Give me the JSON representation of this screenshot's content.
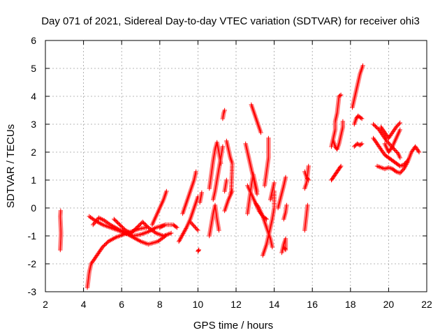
{
  "chart_data": {
    "type": "scatter",
    "title": "Day 071 of 2021, Sidereal Day-to-day VTEC variation (SDTVAR) for receiver ohi3",
    "xlabel": "GPS time / hours",
    "ylabel": "SDTVAR / TECUs",
    "xlim": [
      2,
      22
    ],
    "ylim": [
      -3,
      6
    ],
    "xticks": [
      2,
      4,
      6,
      8,
      10,
      12,
      14,
      16,
      18,
      20,
      22
    ],
    "yticks": [
      -3,
      -2,
      -1,
      0,
      1,
      2,
      3,
      4,
      5,
      6
    ],
    "grid": true,
    "marker": "+",
    "color": "#ff0000",
    "series": [
      {
        "segments": [
          [
            [
              2.78,
              -1.5
            ],
            [
              2.8,
              -1.2
            ],
            [
              2.82,
              -0.9
            ],
            [
              2.8,
              -0.6
            ],
            [
              2.78,
              -0.3
            ],
            [
              2.8,
              -0.1
            ]
          ],
          [
            [
              4.2,
              -2.85
            ],
            [
              4.3,
              -2.3
            ],
            [
              4.4,
              -2.0
            ],
            [
              4.6,
              -1.8
            ],
            [
              4.8,
              -1.6
            ],
            [
              5.0,
              -1.4
            ],
            [
              5.3,
              -1.2
            ],
            [
              5.7,
              -1.05
            ],
            [
              6.1,
              -0.95
            ],
            [
              6.5,
              -0.85
            ],
            [
              6.9,
              -0.75
            ],
            [
              7.3,
              -0.7
            ]
          ],
          [
            [
              4.3,
              -0.3
            ],
            [
              4.6,
              -0.45
            ],
            [
              5.0,
              -0.6
            ],
            [
              5.4,
              -0.7
            ],
            [
              5.8,
              -0.8
            ],
            [
              6.2,
              -0.9
            ],
            [
              6.6,
              -1.05
            ],
            [
              7.0,
              -1.2
            ],
            [
              7.4,
              -1.3
            ],
            [
              7.9,
              -1.2
            ],
            [
              8.3,
              -1.0
            ]
          ],
          [
            [
              4.5,
              -0.6
            ],
            [
              4.8,
              -0.35
            ],
            [
              5.1,
              -0.45
            ],
            [
              5.4,
              -0.6
            ],
            [
              5.8,
              -0.75
            ],
            [
              6.2,
              -0.9
            ],
            [
              6.6,
              -1.0
            ],
            [
              7.0,
              -0.95
            ],
            [
              7.4,
              -0.85
            ],
            [
              7.8,
              -0.7
            ],
            [
              8.3,
              -0.6
            ]
          ],
          [
            [
              5.6,
              -0.4
            ],
            [
              5.9,
              -0.6
            ],
            [
              6.2,
              -0.8
            ],
            [
              6.5,
              -0.9
            ],
            [
              6.8,
              -0.7
            ],
            [
              7.1,
              -0.5
            ],
            [
              7.4,
              -0.7
            ],
            [
              7.8,
              -0.9
            ],
            [
              8.2,
              -1.0
            ],
            [
              8.6,
              -0.9
            ]
          ],
          [
            [
              7.6,
              -0.6
            ],
            [
              7.8,
              -0.3
            ],
            [
              8.0,
              0.0
            ],
            [
              8.2,
              0.3
            ],
            [
              8.35,
              0.6
            ]
          ],
          [
            [
              8.0,
              -0.7
            ],
            [
              8.3,
              -0.6
            ],
            [
              8.7,
              -0.6
            ],
            [
              8.9,
              -0.7
            ]
          ],
          [
            [
              9.0,
              -1.2
            ],
            [
              9.2,
              -0.95
            ],
            [
              9.4,
              -0.7
            ],
            [
              9.6,
              -0.4
            ],
            [
              9.8,
              0.0
            ],
            [
              10.0,
              0.4
            ]
          ],
          [
            [
              9.2,
              -0.2
            ],
            [
              9.4,
              0.2
            ],
            [
              9.6,
              0.6
            ],
            [
              9.8,
              1.0
            ],
            [
              9.9,
              1.3
            ]
          ],
          [
            [
              9.6,
              -0.5
            ],
            [
              9.8,
              -0.65
            ],
            [
              10.0,
              -0.8
            ]
          ],
          [
            [
              10.0,
              -1.55
            ],
            [
              10.05,
              -1.5
            ]
          ],
          [
            [
              10.1,
              0.2
            ],
            [
              10.2,
              0.55
            ]
          ],
          [
            [
              10.6,
              -1.0
            ],
            [
              10.7,
              -0.6
            ],
            [
              10.8,
              -0.2
            ],
            [
              10.9,
              0.1
            ],
            [
              11.0,
              -0.4
            ],
            [
              11.1,
              -0.8
            ]
          ],
          [
            [
              10.6,
              0.7
            ],
            [
              10.7,
              1.2
            ],
            [
              10.8,
              1.7
            ],
            [
              10.9,
              2.1
            ],
            [
              11.0,
              2.35
            ],
            [
              11.1,
              2.0
            ],
            [
              11.2,
              1.6
            ]
          ],
          [
            [
              10.8,
              0.3
            ],
            [
              10.9,
              0.6
            ],
            [
              11.0,
              1.0
            ],
            [
              11.1,
              1.4
            ],
            [
              11.2,
              1.8
            ],
            [
              11.3,
              2.2
            ]
          ],
          [
            [
              11.3,
              3.2
            ],
            [
              11.35,
              3.4
            ],
            [
              11.4,
              3.5
            ]
          ],
          [
            [
              11.4,
              0.6
            ],
            [
              11.5,
              1.0
            ]
          ],
          [
            [
              11.5,
              2.4
            ],
            [
              11.6,
              2.1
            ],
            [
              11.7,
              1.8
            ],
            [
              11.8,
              1.6
            ],
            [
              11.75,
              0.6
            ],
            [
              11.7,
              0.5
            ]
          ],
          [
            [
              11.4,
              -0.1
            ],
            [
              11.6,
              0.3
            ],
            [
              11.8,
              0.6
            ]
          ],
          [
            [
              12.5,
              2.3
            ],
            [
              12.6,
              2.0
            ],
            [
              12.7,
              1.7
            ],
            [
              12.8,
              1.4
            ],
            [
              12.9,
              1.1
            ],
            [
              13.0,
              0.8
            ],
            [
              13.1,
              0.5
            ]
          ],
          [
            [
              12.6,
              0.8
            ],
            [
              12.8,
              0.5
            ],
            [
              13.0,
              0.2
            ],
            [
              13.2,
              -0.1
            ],
            [
              13.4,
              -0.3
            ],
            [
              13.6,
              -0.4
            ]
          ],
          [
            [
              12.6,
              -0.2
            ],
            [
              12.7,
              0.3
            ],
            [
              12.8,
              0.8
            ],
            [
              12.9,
              1.2
            ],
            [
              13.0,
              0.9
            ],
            [
              13.1,
              0.6
            ]
          ],
          [
            [
              12.8,
              3.7
            ],
            [
              12.9,
              3.5
            ],
            [
              13.0,
              3.3
            ],
            [
              13.1,
              3.1
            ],
            [
              13.2,
              2.9
            ],
            [
              13.3,
              2.7
            ]
          ],
          [
            [
              13.0,
              0.2
            ],
            [
              13.2,
              0.0
            ],
            [
              13.4,
              -0.3
            ],
            [
              13.6,
              -0.7
            ],
            [
              13.8,
              -1.1
            ],
            [
              13.9,
              -1.4
            ]
          ],
          [
            [
              13.4,
              -1.7
            ],
            [
              13.5,
              -1.5
            ],
            [
              13.6,
              -1.3
            ],
            [
              13.7,
              -1.0
            ],
            [
              13.8,
              -0.7
            ],
            [
              13.9,
              -0.4
            ],
            [
              14.0,
              0.0
            ],
            [
              14.0,
              0.6
            ]
          ],
          [
            [
              13.5,
              0.8
            ],
            [
              13.6,
              1.3
            ],
            [
              13.7,
              1.8
            ],
            [
              13.7,
              2.2
            ],
            [
              13.7,
              2.5
            ]
          ],
          [
            [
              13.8,
              0.3
            ],
            [
              13.9,
              0.6
            ],
            [
              14.0,
              0.9
            ]
          ],
          [
            [
              14.4,
              -1.6
            ],
            [
              14.5,
              -1.3
            ],
            [
              14.6,
              -1.1
            ],
            [
              14.6,
              -1.5
            ],
            [
              14.5,
              -1.4
            ]
          ],
          [
            [
              14.2,
              0.0
            ],
            [
              14.35,
              0.4
            ],
            [
              14.5,
              0.8
            ],
            [
              14.6,
              1.1
            ]
          ],
          [
            [
              14.5,
              -0.4
            ],
            [
              14.6,
              -0.15
            ],
            [
              14.65,
              0.1
            ]
          ],
          [
            [
              15.6,
              -0.8
            ],
            [
              15.65,
              -0.5
            ],
            [
              15.7,
              -0.2
            ],
            [
              15.75,
              0.1
            ]
          ],
          [
            [
              15.6,
              0.7
            ],
            [
              15.7,
              0.9
            ],
            [
              15.75,
              1.2
            ],
            [
              15.8,
              1.5
            ]
          ],
          [
            [
              15.6,
              1.3
            ],
            [
              15.7,
              1.1
            ],
            [
              15.8,
              1.0
            ]
          ],
          [
            [
              17.0,
              1.0
            ],
            [
              17.1,
              1.1
            ],
            [
              17.2,
              1.2
            ],
            [
              17.3,
              1.3
            ],
            [
              17.4,
              1.4
            ],
            [
              17.5,
              1.5
            ]
          ],
          [
            [
              17.0,
              2.2
            ],
            [
              17.1,
              2.5
            ],
            [
              17.2,
              2.8
            ],
            [
              17.2,
              3.1
            ],
            [
              17.3,
              3.4
            ],
            [
              17.35,
              3.7
            ],
            [
              17.4,
              4.0
            ],
            [
              17.5,
              4.05
            ]
          ],
          [
            [
              17.1,
              2.4
            ],
            [
              17.2,
              2.2
            ],
            [
              17.3,
              2.1
            ],
            [
              17.4,
              2.3
            ],
            [
              17.5,
              2.6
            ],
            [
              17.6,
              2.9
            ],
            [
              17.6,
              3.1
            ]
          ],
          [
            [
              18.2,
              2.2
            ],
            [
              18.35,
              2.3
            ],
            [
              18.5,
              2.25
            ],
            [
              18.6,
              2.3
            ]
          ],
          [
            [
              18.2,
              3.0
            ],
            [
              18.3,
              3.2
            ],
            [
              18.4,
              3.3
            ],
            [
              18.5,
              3.25
            ],
            [
              18.6,
              3.2
            ]
          ],
          [
            [
              18.1,
              3.6
            ],
            [
              18.2,
              3.9
            ],
            [
              18.3,
              4.2
            ],
            [
              18.4,
              4.5
            ],
            [
              18.5,
              4.8
            ],
            [
              18.6,
              5.0
            ],
            [
              18.65,
              5.1
            ]
          ],
          [
            [
              19.2,
              3.0
            ],
            [
              19.35,
              2.9
            ],
            [
              19.5,
              2.8
            ],
            [
              19.7,
              2.6
            ],
            [
              19.9,
              2.4
            ],
            [
              20.1,
              2.25
            ],
            [
              20.3,
              2.1
            ],
            [
              20.5,
              1.95
            ],
            [
              20.6,
              1.8
            ]
          ],
          [
            [
              19.2,
              2.5
            ],
            [
              19.4,
              2.3
            ],
            [
              19.6,
              2.1
            ],
            [
              19.8,
              1.9
            ],
            [
              20.0,
              1.8
            ],
            [
              20.2,
              1.7
            ],
            [
              20.4,
              1.6
            ],
            [
              20.6,
              1.5
            ],
            [
              20.8,
              1.55
            ],
            [
              21.0,
              1.7
            ]
          ],
          [
            [
              19.4,
              1.5
            ],
            [
              19.6,
              1.45
            ],
            [
              19.8,
              1.4
            ],
            [
              20.0,
              1.45
            ],
            [
              20.2,
              1.4
            ],
            [
              20.4,
              1.3
            ],
            [
              20.6,
              1.25
            ],
            [
              20.8,
              1.4
            ],
            [
              21.0,
              1.65
            ],
            [
              21.2,
              2.0
            ],
            [
              21.4,
              2.2
            ],
            [
              21.6,
              2.0
            ]
          ],
          [
            [
              19.6,
              2.9
            ],
            [
              19.8,
              2.7
            ],
            [
              20.0,
              2.5
            ],
            [
              20.2,
              2.7
            ],
            [
              20.4,
              2.9
            ],
            [
              20.6,
              3.05
            ]
          ],
          [
            [
              19.8,
              2.3
            ],
            [
              20.0,
              2.0
            ],
            [
              20.2,
              2.2
            ],
            [
              20.4,
              2.5
            ],
            [
              20.6,
              2.8
            ]
          ]
        ]
      }
    ]
  }
}
